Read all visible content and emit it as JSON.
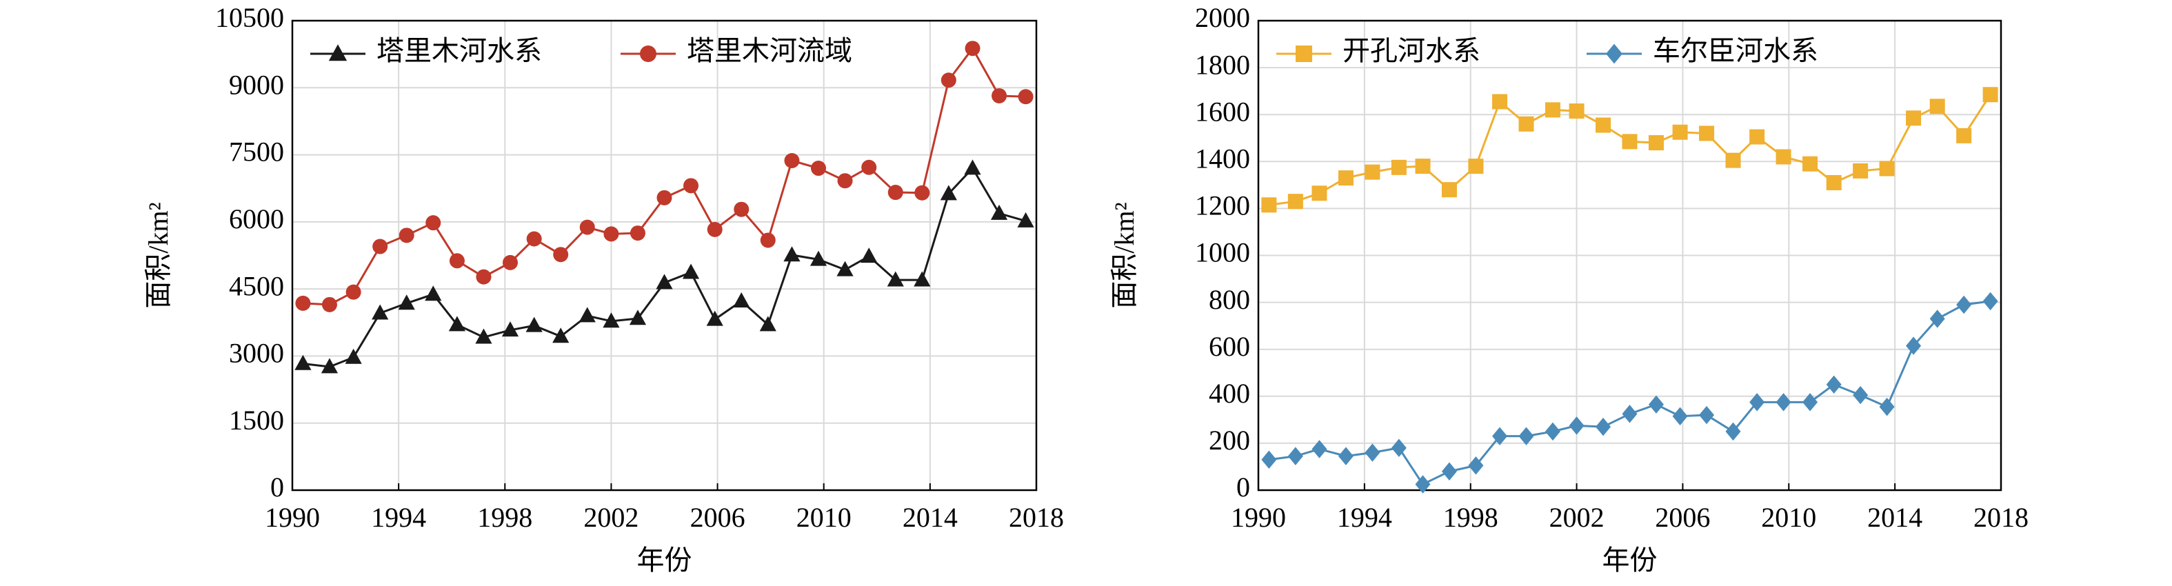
{
  "chart_data": [
    {
      "type": "line",
      "xlabel": "年份",
      "ylabel": "面积/km²",
      "grid": true,
      "legend": "upper left",
      "xlim": [
        1990,
        2018
      ],
      "xticks": [
        1990,
        1994,
        1998,
        2002,
        2006,
        2010,
        2014,
        2018
      ],
      "ylim": [
        0,
        10500
      ],
      "yticks": [
        0,
        1500,
        3000,
        4500,
        6000,
        7500,
        9000,
        10500
      ],
      "x": [
        1990.4,
        1991.4,
        1992.3,
        1993.3,
        1994.3,
        1995.3,
        1996.2,
        1997.2,
        1998.2,
        1999.1,
        2000.1,
        2001.1,
        2002.0,
        2003.0,
        2004.0,
        2005.0,
        2005.9,
        2006.9,
        2007.9,
        2008.8,
        2009.8,
        2010.8,
        2011.7,
        2012.7,
        2013.7,
        2014.7,
        2015.6,
        2016.6,
        2017.6
      ],
      "series": [
        {
          "name": "塔里木河水系",
          "color": "#1a1a1a",
          "marker": "triangle",
          "values": [
            2830,
            2760,
            2970,
            3960,
            4180,
            4380,
            3700,
            3420,
            3580,
            3680,
            3440,
            3900,
            3780,
            3840,
            4640,
            4870,
            3820,
            4230,
            3700,
            5260,
            5160,
            4930,
            5230,
            4700,
            4700,
            6630,
            7200,
            6190,
            6020
          ]
        },
        {
          "name": "塔里木河流域",
          "color": "#c0392b",
          "marker": "circle",
          "values": [
            4180,
            4150,
            4430,
            5450,
            5700,
            5980,
            5130,
            4770,
            5090,
            5620,
            5270,
            5880,
            5730,
            5750,
            6540,
            6810,
            5830,
            6280,
            5590,
            7370,
            7200,
            6920,
            7220,
            6660,
            6650,
            9170,
            9880,
            8820,
            8800
          ]
        }
      ]
    },
    {
      "type": "line",
      "xlabel": "年份",
      "ylabel": "面积/km²",
      "grid": true,
      "legend": "upper left",
      "xlim": [
        1990,
        2018
      ],
      "xticks": [
        1990,
        1994,
        1998,
        2002,
        2006,
        2010,
        2014,
        2018
      ],
      "ylim": [
        0,
        2000
      ],
      "yticks": [
        0,
        200,
        400,
        600,
        800,
        1000,
        1200,
        1400,
        1600,
        1800,
        2000
      ],
      "x": [
        1990.4,
        1991.4,
        1992.3,
        1993.3,
        1994.3,
        1995.3,
        1996.2,
        1997.2,
        1998.2,
        1999.1,
        2000.1,
        2001.1,
        2002.0,
        2003.0,
        2004.0,
        2005.0,
        2005.9,
        2006.9,
        2007.9,
        2008.8,
        2009.8,
        2010.8,
        2011.7,
        2012.7,
        2013.7,
        2014.7,
        2015.6,
        2016.6,
        2017.6
      ],
      "series": [
        {
          "name": "开孔河水系",
          "color": "#f0b030",
          "marker": "square",
          "values": [
            1215,
            1230,
            1265,
            1330,
            1355,
            1375,
            1380,
            1280,
            1380,
            1655,
            1560,
            1620,
            1615,
            1555,
            1485,
            1480,
            1525,
            1520,
            1405,
            1505,
            1420,
            1390,
            1310,
            1360,
            1370,
            1585,
            1635,
            1510,
            1685
          ]
        },
        {
          "name": "车尔臣河水系",
          "color": "#4a8ab8",
          "marker": "diamond",
          "values": [
            130,
            145,
            175,
            145,
            160,
            180,
            25,
            80,
            105,
            230,
            230,
            250,
            275,
            270,
            325,
            365,
            315,
            320,
            250,
            375,
            375,
            375,
            450,
            405,
            355,
            615,
            730,
            790,
            805
          ]
        }
      ]
    }
  ]
}
